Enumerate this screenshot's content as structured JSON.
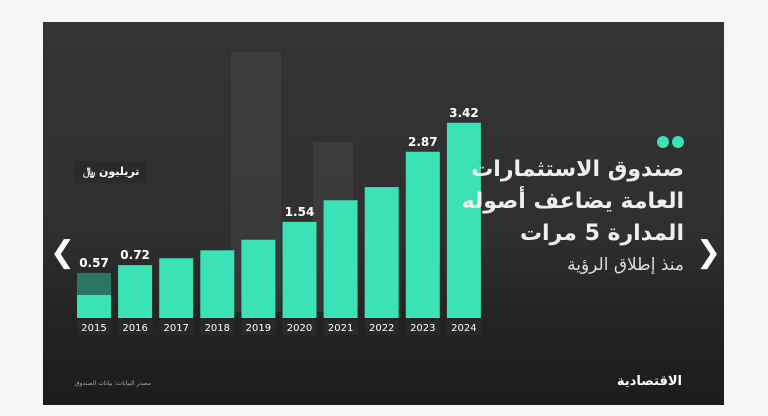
{
  "carousel": {
    "prev_icon": "chevron-left-icon",
    "next_icon": "chevron-right-icon"
  },
  "infographic": {
    "title": "صندوق الاستثمارات العامة يضاعف أصوله المدارة 5 مرات",
    "subtitle": "منذ إطلاق الرؤية",
    "unit_label": "تريليون ﷼",
    "brand": "الاقتصادية",
    "source": "مصدر البيانات: بيانات الصندوق",
    "accent_color": "#3ae2b5"
  },
  "chart_data": {
    "type": "bar",
    "categories": [
      "2015",
      "2016",
      "2017",
      "2018",
      "2019",
      "2020",
      "2021",
      "2022",
      "2023",
      "2024"
    ],
    "values": [
      0.57,
      0.72,
      0.85,
      1.0,
      1.2,
      1.54,
      1.95,
      2.2,
      2.87,
      3.42
    ],
    "data_labels": [
      "0.57",
      "0.72",
      "",
      "",
      "",
      "1.54",
      "",
      "",
      "2.87",
      "3.42"
    ],
    "ylabel": "تريليون ﷼",
    "grid": false
  }
}
